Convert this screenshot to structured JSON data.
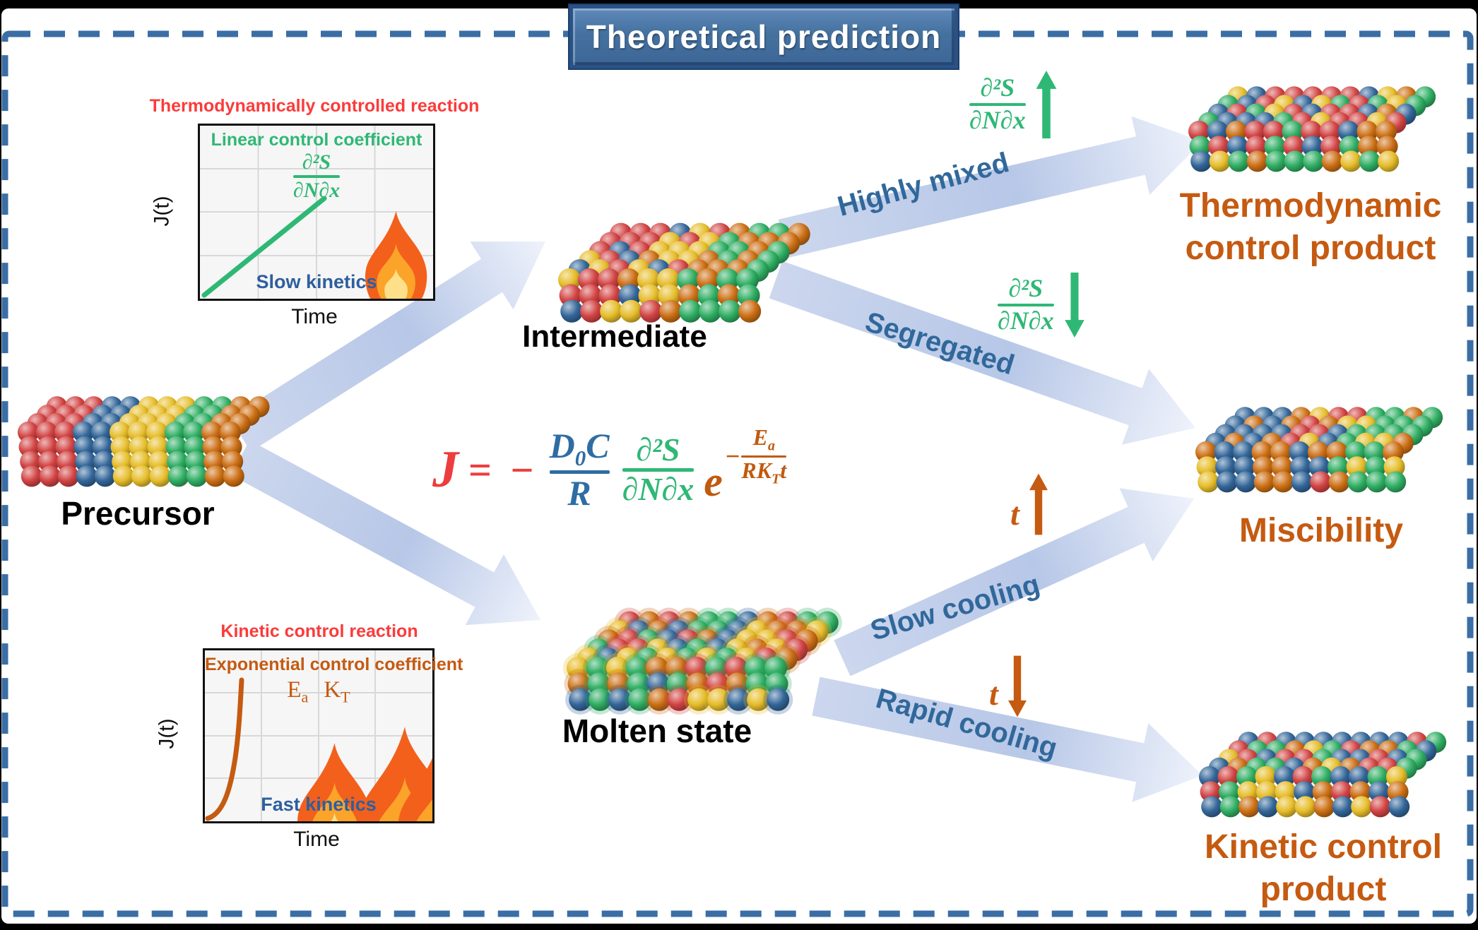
{
  "banner": {
    "title": "Theoretical prediction"
  },
  "insets": {
    "thermo": {
      "title": "Thermodynamically controlled reaction",
      "coefficient_label": "Linear control coefficient",
      "entropy_fraction": {
        "numerator": "∂²S",
        "denominator": "∂N∂x"
      },
      "kinetics_label": "Slow kinetics",
      "y_axis": "J(t)",
      "x_axis": "Time",
      "curve_type": "linear"
    },
    "kinetic": {
      "title": "Kinetic control reaction",
      "coefficient_label": "Exponential control coefficient",
      "params": {
        "ea_base": "E",
        "ea_sub": "a",
        "kt_base": "K",
        "kt_sub": "T"
      },
      "kinetics_label": "Fast kinetics",
      "y_axis": "J(t)",
      "x_axis": "Time",
      "curve_type": "exponential"
    }
  },
  "nodes": {
    "precursor": {
      "label": "Precursor"
    },
    "intermediate": {
      "label": "Intermediate"
    },
    "molten": {
      "label": "Molten state"
    },
    "thermo_product": {
      "label_line1": "Thermodynamic",
      "label_line2": "control product"
    },
    "miscibility": {
      "label": "Miscibility"
    },
    "kinetic_product": {
      "label_line1": "Kinetic control",
      "label_line2": "product"
    }
  },
  "pathways": {
    "highly_mixed": "Highly mixed",
    "segregated": "Segregated",
    "slow_cooling": "Slow cooling",
    "rapid_cooling": "Rapid cooling"
  },
  "annotations": {
    "entropy_up": {
      "numerator": "∂²S",
      "denominator": "∂N∂x",
      "direction": "up"
    },
    "entropy_down": {
      "numerator": "∂²S",
      "denominator": "∂N∂x",
      "direction": "down"
    },
    "time_up": {
      "label": "t",
      "direction": "up"
    },
    "time_down": {
      "label": "t",
      "direction": "down"
    }
  },
  "equation": {
    "lhs": "J",
    "rel": "= −",
    "frac1": {
      "num_base": "D",
      "num_sub": "0",
      "num_tail": "C",
      "den": "R"
    },
    "frac2": {
      "num": "∂²S",
      "den": "∂N∂x"
    },
    "exp": {
      "base": "e",
      "sign": "−",
      "num_base": "E",
      "num_sub": "a",
      "den_base": "RK",
      "den_sub": "T",
      "den_tail": "t"
    }
  },
  "colors": {
    "border_blue": "#3a6ea5",
    "banner_blue": "#45719f",
    "arrow_tail": "#ccd7ee",
    "arrow_mid": "#b7c7e7",
    "arrow_head": "#eef2fb",
    "path_label_blue": "#31689b",
    "red_text": "#fb3b3b",
    "green_text": "#2fb875",
    "dark_blue_text": "#2e5f9e",
    "orange_text": "#c55a11",
    "equation_red": "#ed3d3d",
    "equation_blue": "#2e6da4",
    "spheres": {
      "red": "#d24343",
      "blue": "#336699",
      "yellow": "#e6bd2a",
      "green": "#2fae63",
      "orange": "#cc6f14"
    }
  },
  "clusters": {
    "precursor": {
      "arrangement": "segregated-blocks",
      "seed": 2,
      "glow": false
    },
    "intermediate": {
      "arrangement": "partially-mixed-domains",
      "seed": 5,
      "glow": false
    },
    "molten": {
      "arrangement": "random-mixed",
      "seed": 9,
      "glow": true
    },
    "thermo_product": {
      "arrangement": "random-mixed",
      "seed": 13,
      "glow": false
    },
    "miscibility": {
      "arrangement": "segregated-domains",
      "seed": 21,
      "glow": false
    },
    "kinetic_product": {
      "arrangement": "random-mixed",
      "seed": 29,
      "glow": false
    }
  }
}
